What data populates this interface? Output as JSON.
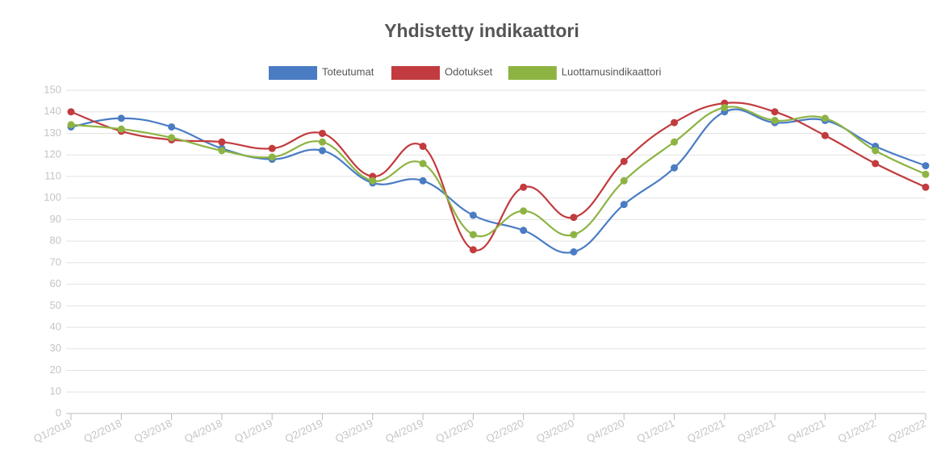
{
  "chart_data": {
    "type": "line",
    "title": "Yhdistetty indikaattori",
    "categories": [
      "Q1/2018",
      "Q2/2018",
      "Q3/2018",
      "Q4/2018",
      "Q1/2019",
      "Q2/2019",
      "Q3/2019",
      "Q4/2019",
      "Q1/2020",
      "Q2/2020",
      "Q3/2020",
      "Q4/2020",
      "Q1/2021",
      "Q2/2021",
      "Q3/2021",
      "Q4/2021",
      "Q1/2022",
      "Q2/2022"
    ],
    "series": [
      {
        "name": "Toteutumat",
        "color": "#4a7cc4",
        "values": [
          133,
          137,
          133,
          123,
          118,
          122,
          107,
          108,
          92,
          85,
          75,
          97,
          114,
          140,
          135,
          136,
          124,
          115
        ]
      },
      {
        "name": "Odotukset",
        "color": "#c23b3e",
        "values": [
          140,
          131,
          127,
          126,
          123,
          130,
          110,
          124,
          76,
          105,
          91,
          117,
          135,
          144,
          140,
          129,
          116,
          105
        ]
      },
      {
        "name": "Luottamusindikaattori",
        "color": "#8db443",
        "values": [
          134,
          132,
          128,
          122,
          119,
          126,
          108,
          116,
          83,
          94,
          83,
          108,
          126,
          142,
          136,
          137,
          122,
          111
        ]
      }
    ],
    "ylim": [
      0,
      150
    ],
    "yticks": [
      0,
      10,
      20,
      30,
      40,
      50,
      60,
      70,
      80,
      90,
      100,
      110,
      120,
      130,
      140,
      150
    ],
    "grid": true,
    "legend": "top"
  }
}
